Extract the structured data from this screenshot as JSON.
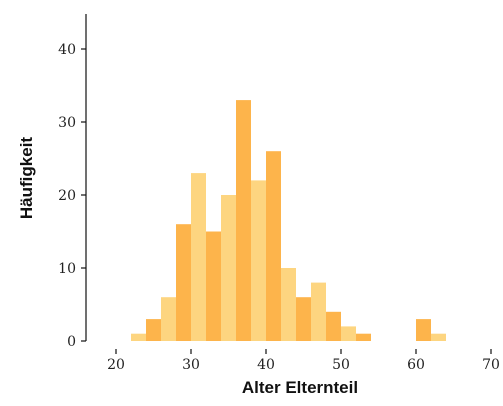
{
  "chart_data": {
    "type": "bar",
    "title": "",
    "xlabel": "Alter Elternteil",
    "ylabel": "Häufigkeit",
    "bin_width": 2,
    "x_ticks": [
      "20",
      "30",
      "40",
      "50",
      "60",
      "70"
    ],
    "y_ticks": [
      "0",
      "10",
      "20",
      "30",
      "40"
    ],
    "xlim": [
      15,
      70
    ],
    "ylim": [
      0,
      45
    ],
    "grid": false,
    "colors": {
      "dark": "#FDB44B",
      "light": "#FDD580"
    },
    "bins": [
      {
        "x0": 22,
        "x1": 24,
        "value": 1
      },
      {
        "x0": 24,
        "x1": 26,
        "value": 3
      },
      {
        "x0": 26,
        "x1": 28,
        "value": 6
      },
      {
        "x0": 28,
        "x1": 30,
        "value": 16
      },
      {
        "x0": 30,
        "x1": 32,
        "value": 23
      },
      {
        "x0": 32,
        "x1": 34,
        "value": 15
      },
      {
        "x0": 34,
        "x1": 36,
        "value": 20
      },
      {
        "x0": 36,
        "x1": 38,
        "value": 33
      },
      {
        "x0": 38,
        "x1": 40,
        "value": 22
      },
      {
        "x0": 40,
        "x1": 42,
        "value": 26
      },
      {
        "x0": 42,
        "x1": 44,
        "value": 10
      },
      {
        "x0": 44,
        "x1": 46,
        "value": 6
      },
      {
        "x0": 46,
        "x1": 48,
        "value": 8
      },
      {
        "x0": 48,
        "x1": 50,
        "value": 4
      },
      {
        "x0": 50,
        "x1": 52,
        "value": 2
      },
      {
        "x0": 52,
        "x1": 54,
        "value": 1
      },
      {
        "x0": 60,
        "x1": 62,
        "value": 3
      },
      {
        "x0": 62,
        "x1": 64,
        "value": 1
      }
    ]
  }
}
